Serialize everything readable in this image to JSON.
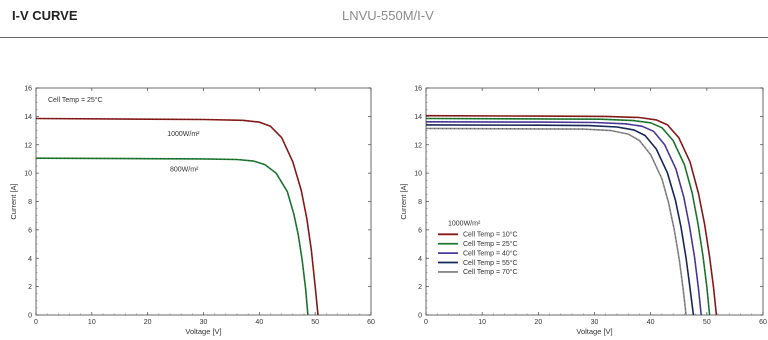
{
  "header": {
    "title": "I-V CURVE",
    "model": "LNVU-550M/I-V"
  },
  "colors": {
    "c10": "#8b1a1a",
    "c25": "#1f7a32",
    "c40": "#4b3b9c",
    "c55": "#17295c",
    "c70": "#8a8a8a"
  },
  "chart_data": [
    {
      "type": "line",
      "xlabel": "Voltage [V]",
      "ylabel": "Current [A]",
      "xlim": [
        0,
        60
      ],
      "ylim": [
        0,
        16
      ],
      "xticks": [
        0,
        10,
        20,
        30,
        40,
        50,
        60
      ],
      "yticks": [
        0,
        2,
        4,
        6,
        8,
        10,
        12,
        14,
        16
      ],
      "annotation": "Cell Temp = 25°C",
      "series": [
        {
          "name": "1000W/m²",
          "color": "#8b1a1a",
          "x": [
            0,
            20,
            30,
            37,
            40,
            42,
            44,
            46,
            47.5,
            48.5,
            49.3,
            50,
            50.5
          ],
          "y": [
            13.85,
            13.8,
            13.78,
            13.72,
            13.6,
            13.3,
            12.5,
            10.8,
            8.8,
            6.8,
            4.6,
            2.0,
            0
          ]
        },
        {
          "name": "800W/m²",
          "color": "#1f7a32",
          "x": [
            0,
            20,
            30,
            36,
            39,
            41,
            43,
            45,
            46.2,
            47,
            47.7,
            48.3,
            48.7
          ],
          "y": [
            11.05,
            11.02,
            11.0,
            10.96,
            10.85,
            10.6,
            10.0,
            8.7,
            7.1,
            5.6,
            3.8,
            1.8,
            0
          ]
        }
      ]
    },
    {
      "type": "line",
      "xlabel": "Voltage [V]",
      "ylabel": "Current [A]",
      "xlim": [
        0,
        60
      ],
      "ylim": [
        0,
        16
      ],
      "xticks": [
        0,
        10,
        20,
        30,
        40,
        50,
        60
      ],
      "yticks": [
        0,
        2,
        4,
        6,
        8,
        10,
        12,
        14,
        16
      ],
      "legend_title": "1000W/m²",
      "legend_position": "bottom-left",
      "series": [
        {
          "name": "Cell Temp = 10°C",
          "color": "#8b1a1a",
          "x": [
            0,
            20,
            32,
            38,
            41,
            43,
            45,
            47,
            48.5,
            49.6,
            50.5,
            51.2,
            51.7
          ],
          "y": [
            14.05,
            14.02,
            14.0,
            13.92,
            13.75,
            13.4,
            12.5,
            10.8,
            8.6,
            6.4,
            4.1,
            1.9,
            0
          ]
        },
        {
          "name": "Cell Temp = 25°C",
          "color": "#1f7a32",
          "x": [
            0,
            20,
            31,
            37,
            40,
            42,
            44,
            46,
            47.4,
            48.4,
            49.3,
            50,
            50.5
          ],
          "y": [
            13.85,
            13.82,
            13.8,
            13.7,
            13.55,
            13.2,
            12.3,
            10.6,
            8.6,
            6.5,
            4.2,
            2.0,
            0
          ]
        },
        {
          "name": "Cell Temp = 40°C",
          "color": "#4b3b9c",
          "x": [
            0,
            20,
            30,
            35.5,
            38.5,
            40.5,
            42.5,
            44.5,
            45.9,
            46.9,
            47.8,
            48.5,
            49
          ],
          "y": [
            13.62,
            13.6,
            13.57,
            13.48,
            13.3,
            12.95,
            12.0,
            10.3,
            8.3,
            6.3,
            4.1,
            1.9,
            0
          ]
        },
        {
          "name": "Cell Temp = 55°C",
          "color": "#17295c",
          "x": [
            0,
            20,
            29,
            34,
            37,
            39,
            41,
            43,
            44.4,
            45.4,
            46.3,
            47,
            47.6
          ],
          "y": [
            13.4,
            13.38,
            13.35,
            13.25,
            13.05,
            12.65,
            11.7,
            10.0,
            8.1,
            6.2,
            4.0,
            1.9,
            0
          ]
        },
        {
          "name": "Cell Temp = 70°C",
          "color": "#8a8a8a",
          "x": [
            0,
            20,
            28,
            33,
            36,
            38,
            40,
            42,
            43.2,
            44.2,
            45.1,
            45.8,
            46.3
          ],
          "y": [
            13.15,
            13.12,
            13.1,
            13.0,
            12.75,
            12.3,
            11.3,
            9.6,
            7.9,
            6.0,
            3.9,
            1.8,
            0
          ]
        }
      ]
    }
  ]
}
